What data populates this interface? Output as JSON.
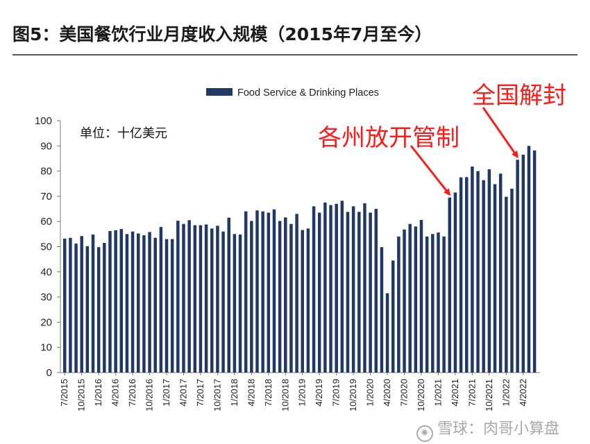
{
  "figure": {
    "title": "图5：美国餐饮行业月度收入规模（2015年7月至今）"
  },
  "watermark": {
    "text": "雪球：肉哥小算盘",
    "icon": "snowball-icon"
  },
  "chart_data": {
    "type": "bar",
    "legend": {
      "entries": [
        "Food Service & Drinking Places"
      ],
      "placement": "top-center"
    },
    "unit_label": "单位：十亿美元",
    "ylim": [
      0,
      100
    ],
    "yticks": [
      0,
      10,
      20,
      30,
      40,
      50,
      60,
      70,
      80,
      90,
      100
    ],
    "grid": false,
    "bar_color": "#1f3864",
    "x_tick_labels": [
      "7/2015",
      "10/2015",
      "1/2016",
      "4/2016",
      "7/2016",
      "10/2016",
      "1/2017",
      "4/2017",
      "7/2017",
      "10/2017",
      "1/2018",
      "4/2018",
      "7/2018",
      "10/2018",
      "1/2019",
      "4/2019",
      "7/2019",
      "10/2019",
      "1/2020",
      "4/2020",
      "7/2020",
      "10/2020",
      "1/2021",
      "4/2021",
      "7/2021",
      "10/2021",
      "1/2022",
      "4/2022"
    ],
    "series": [
      {
        "name": "Food Service & Drinking Places",
        "values": [
          53.2,
          53.5,
          51.2,
          54.2,
          50.2,
          54.8,
          49.8,
          51.5,
          56.2,
          56.5,
          57.0,
          55.0,
          56.0,
          55.2,
          54.5,
          55.8,
          53.5,
          57.8,
          53.0,
          53.0,
          60.3,
          59.0,
          60.5,
          58.5,
          58.5,
          58.8,
          57.2,
          58.3,
          56.0,
          61.5,
          55.0,
          54.8,
          64.0,
          60.2,
          64.4,
          64.0,
          63.5,
          64.8,
          60.2,
          61.6,
          59.0,
          63.0,
          56.6,
          57.2,
          66.0,
          63.5,
          67.5,
          66.5,
          67.0,
          68.2,
          63.8,
          66.0,
          63.8,
          67.2,
          63.5,
          65.0,
          49.8,
          31.5,
          44.5,
          54.0,
          56.8,
          59.0,
          58.0,
          60.6,
          54.0,
          55.0,
          55.6,
          54.0,
          69.5,
          71.5,
          77.5,
          77.6,
          81.8,
          80.0,
          76.4,
          80.7,
          74.8,
          79.0,
          69.8,
          73.0,
          84.5,
          86.5,
          90.0,
          88.2
        ]
      }
    ],
    "annotations": [
      {
        "text": "各州放开管制",
        "color": "#ff1a1a",
        "points_to_index": 68
      },
      {
        "text": "全国解封",
        "color": "#ff1a1a",
        "points_to_index": 80
      }
    ]
  }
}
